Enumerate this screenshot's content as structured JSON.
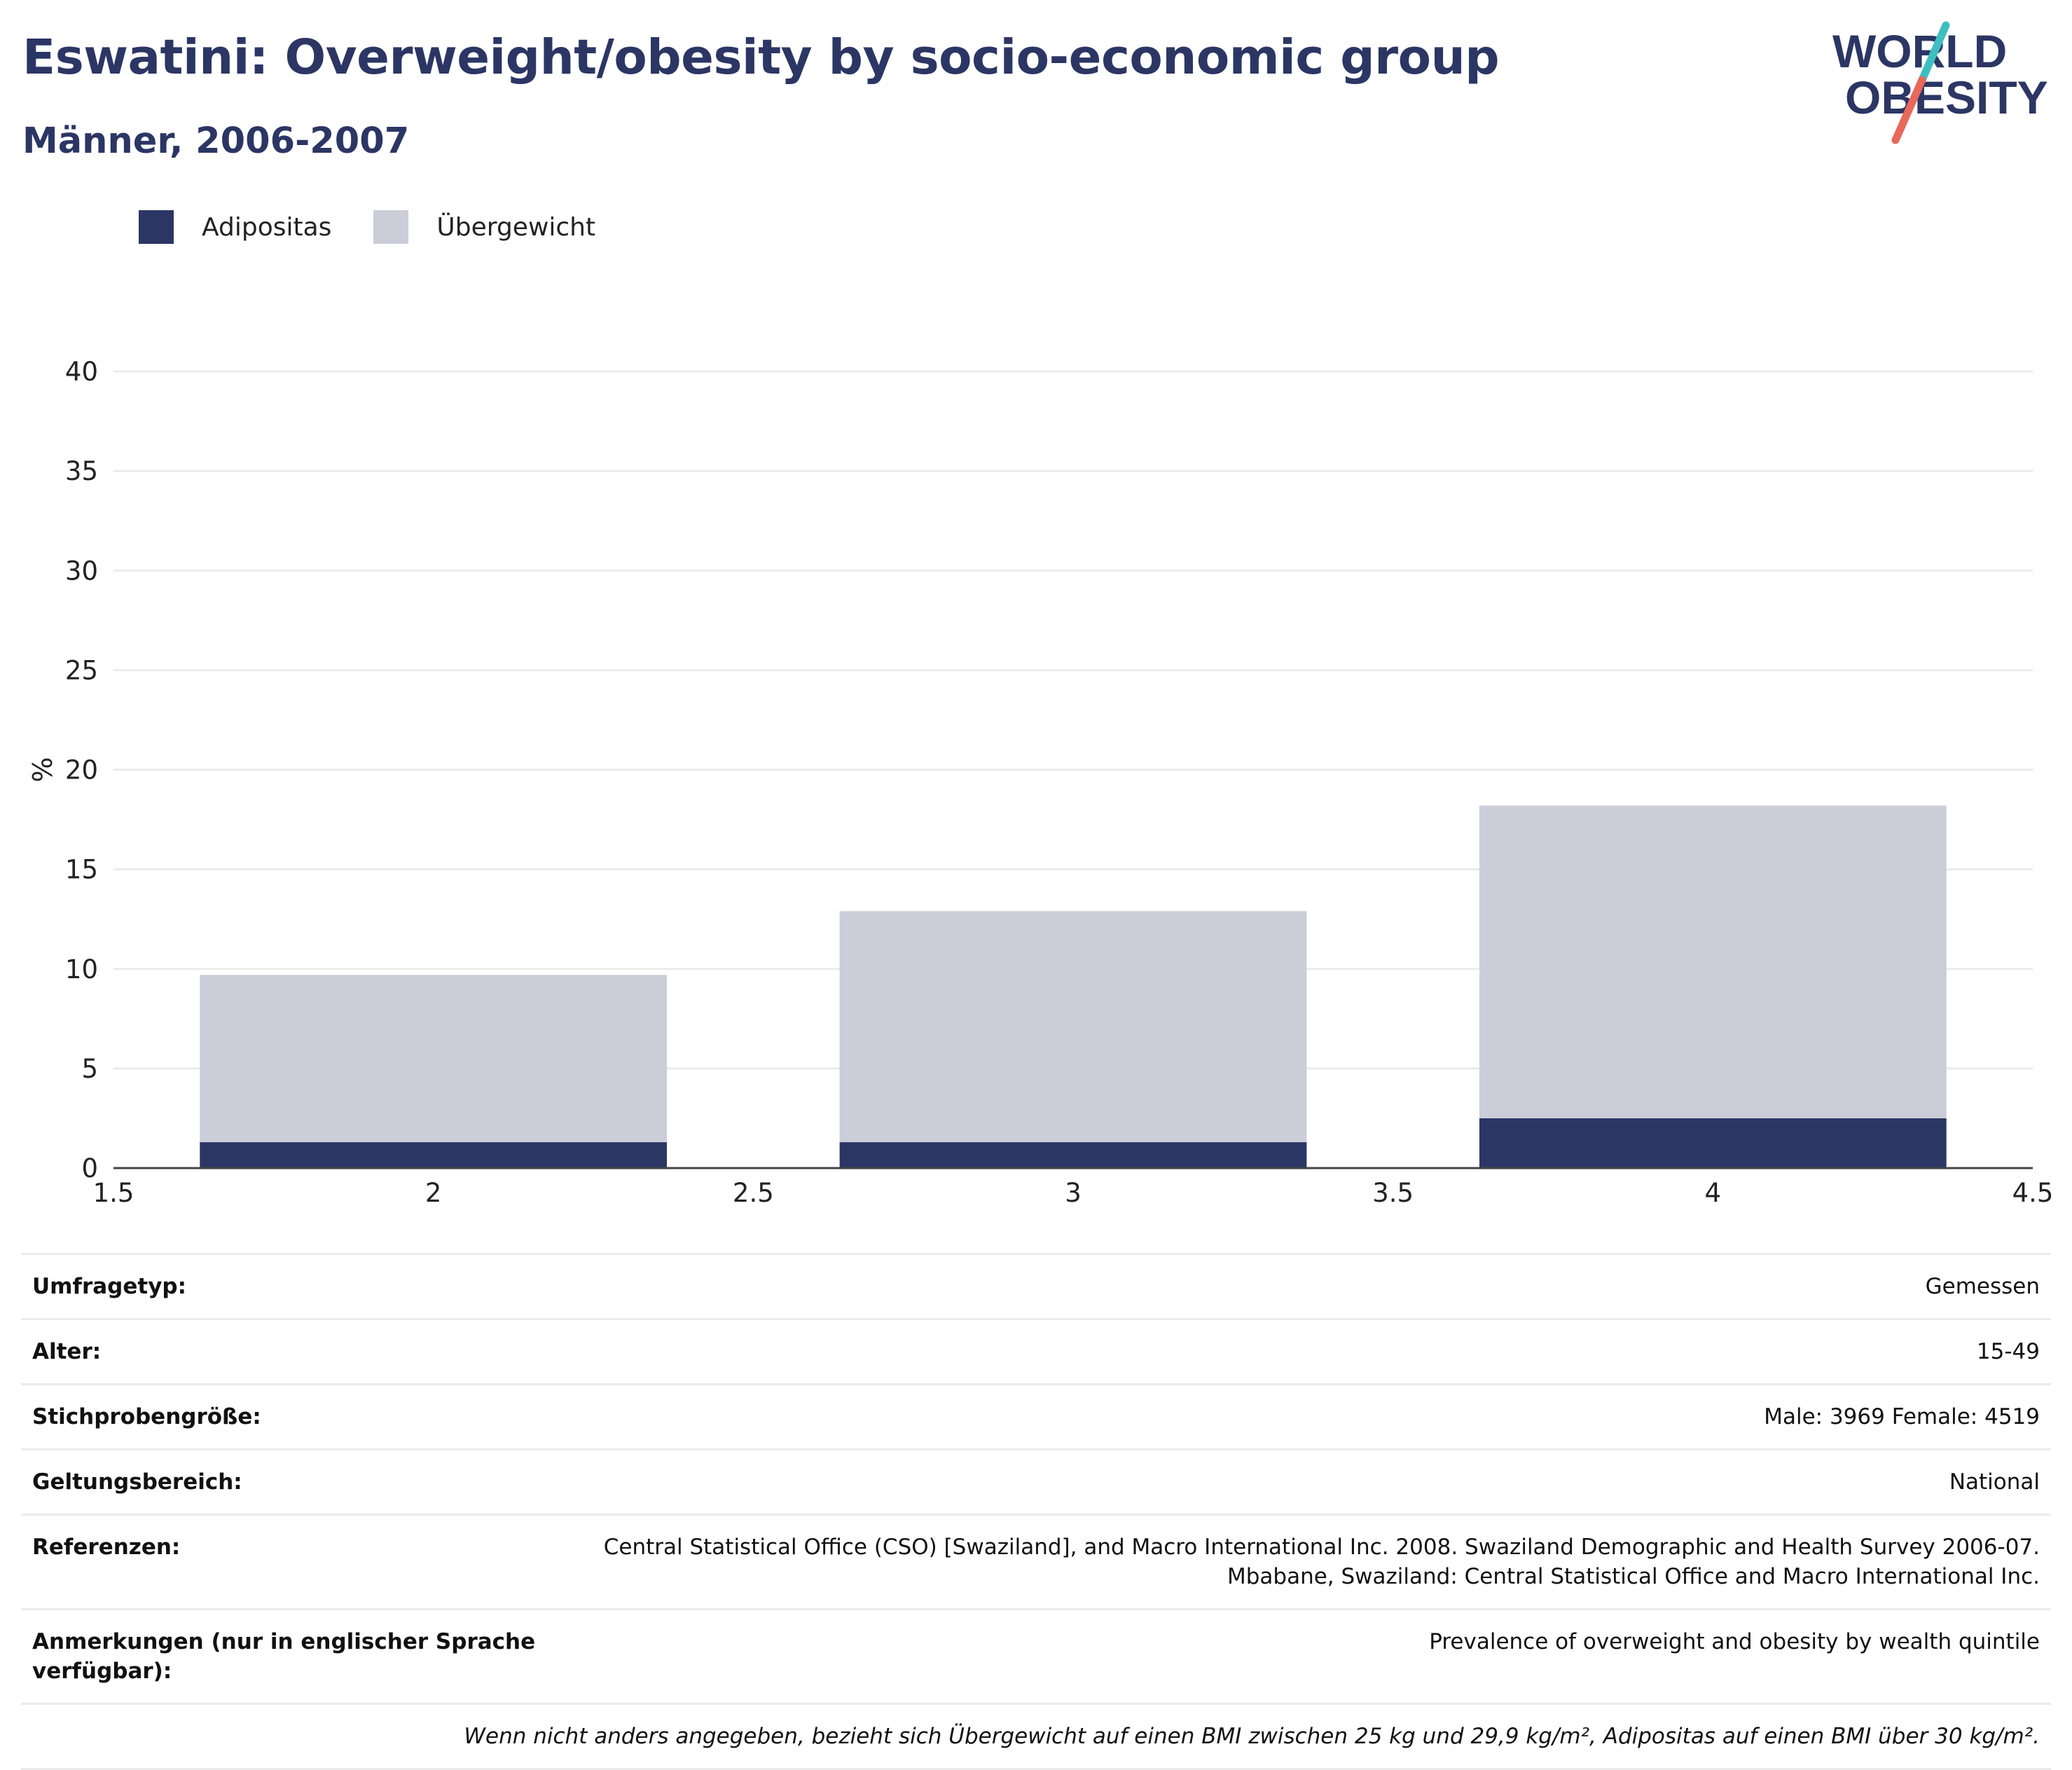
{
  "header": {
    "title": "Eswatini: Overweight/obesity by socio-economic group",
    "subtitle": "Männer, 2006-2007"
  },
  "logo": {
    "line1": "WORLD",
    "line2": "OBESITY",
    "colors": {
      "text": "#2b3664",
      "slash_top": "#3dbfc0",
      "slash_bottom": "#e8685a"
    }
  },
  "legend": [
    {
      "label": "Adipositas",
      "color": "#2b3664"
    },
    {
      "label": "Übergewicht",
      "color": "#cbcdd8"
    }
  ],
  "chart_data": {
    "type": "bar",
    "stacked": true,
    "x": [
      2,
      3,
      4
    ],
    "series": [
      {
        "name": "Adipositas",
        "color": "#2b3664",
        "values": [
          1.3,
          1.3,
          2.5
        ]
      },
      {
        "name": "Übergewicht",
        "color": "#cbcdd8",
        "values": [
          8.4,
          11.6,
          15.7
        ]
      }
    ],
    "xlim": [
      1.5,
      4.5
    ],
    "ylim": [
      0,
      40
    ],
    "xticks": [
      "1.5",
      "2",
      "2.5",
      "3",
      "3.5",
      "4",
      "4.5"
    ],
    "yticks": [
      "0",
      "5",
      "10",
      "15",
      "20",
      "25",
      "30",
      "35",
      "40"
    ],
    "xlabel": "",
    "ylabel": "%",
    "grid": true,
    "legend_position": "top-left"
  },
  "info": {
    "rows": [
      {
        "label": "Umfragetyp:",
        "value": "Gemessen"
      },
      {
        "label": "Alter:",
        "value": "15-49"
      },
      {
        "label": "Stichprobengröße:",
        "value": "Male: 3969 Female: 4519"
      },
      {
        "label": "Geltungsbereich:",
        "value": "National"
      },
      {
        "label": "Referenzen:",
        "value": "Central Statistical Office (CSO) [Swaziland], and Macro International Inc. 2008. Swaziland Demographic and Health Survey 2006-07.\nMbabane, Swaziland: Central Statistical Office and Macro International Inc."
      },
      {
        "label": "Anmerkungen (nur in englischer Sprache verfügbar):",
        "value": "Prevalence of overweight and obesity by wealth quintile"
      }
    ],
    "footnote": "Wenn nicht anders angegeben, bezieht sich Übergewicht auf einen BMI zwischen 25 kg und 29,9 kg/m², Adipositas auf einen BMI über 30 kg/m²."
  }
}
